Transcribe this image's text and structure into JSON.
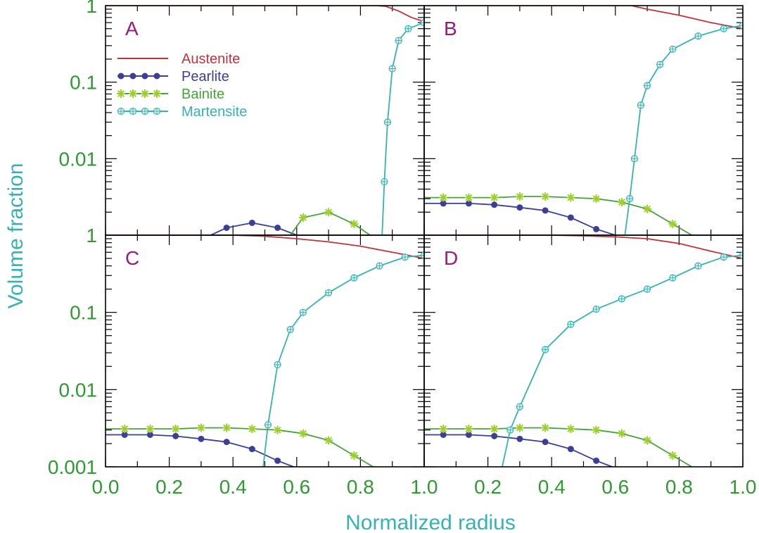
{
  "chart_data": {
    "type": "line",
    "xlabel": "Normalized radius",
    "ylabel": "Volume fraction",
    "x_ticks": [
      "0.0",
      "0.2",
      "0.4",
      "0.6",
      "0.8",
      "1.0",
      "0.2",
      "0.4",
      "0.6",
      "0.8",
      "1.0"
    ],
    "y_tick_labels": {
      "top_row": [
        "1",
        "0.1",
        "0.01"
      ],
      "bottom_row": [
        "1",
        "0.1",
        "0.01",
        "0.001"
      ]
    },
    "yscale": "log",
    "ylim": [
      0.001,
      1
    ],
    "xlim": [
      0,
      1
    ],
    "legend": {
      "placement": "top-left (panel A)",
      "entries": [
        {
          "name": "Austenite",
          "marker": "none",
          "color": "#c0333b"
        },
        {
          "name": "Pearlite",
          "marker": "filled-circle",
          "color": "#3b3f98"
        },
        {
          "name": "Bainite",
          "marker": "asterisk",
          "color": "#45a33a"
        },
        {
          "name": "Martensite",
          "marker": "circle-plus",
          "color": "#35b3b3"
        }
      ]
    },
    "panels": [
      {
        "label": "A",
        "series": [
          {
            "name": "Austenite",
            "x": [
              0,
              0.3,
              0.5,
              0.6,
              0.8,
              0.85,
              0.88,
              0.92,
              0.96,
              1.0
            ],
            "y": [
              1,
              1,
              1,
              1,
              1,
              1,
              0.98,
              0.85,
              0.7,
              0.62
            ]
          },
          {
            "name": "Pearlite",
            "x": [
              0.33,
              0.38,
              0.46,
              0.54,
              0.6
            ],
            "y": [
              0.001,
              0.00125,
              0.00145,
              0.00125,
              0.001
            ]
          },
          {
            "name": "Bainite",
            "x": [
              0.58,
              0.62,
              0.7,
              0.78,
              0.83
            ],
            "y": [
              0.001,
              0.0017,
              0.002,
              0.0014,
              0.001
            ]
          },
          {
            "name": "Martensite",
            "x": [
              0.868,
              0.875,
              0.885,
              0.9,
              0.92,
              0.95,
              1.0
            ],
            "y": [
              0.001,
              0.005,
              0.03,
              0.15,
              0.35,
              0.5,
              0.6
            ]
          }
        ]
      },
      {
        "label": "B",
        "series": [
          {
            "name": "Austenite",
            "x": [
              0,
              0.4,
              0.6,
              0.65,
              0.7,
              0.8,
              0.9,
              1.0
            ],
            "y": [
              1,
              1,
              1,
              1,
              0.9,
              0.75,
              0.6,
              0.5
            ]
          },
          {
            "name": "Pearlite",
            "x": [
              0.0,
              0.06,
              0.14,
              0.22,
              0.3,
              0.38,
              0.46,
              0.54,
              0.6
            ],
            "y": [
              0.0026,
              0.0026,
              0.0026,
              0.0025,
              0.0023,
              0.0021,
              0.0017,
              0.0012,
              0.001
            ]
          },
          {
            "name": "Bainite",
            "x": [
              0.0,
              0.06,
              0.14,
              0.22,
              0.3,
              0.38,
              0.46,
              0.54,
              0.62,
              0.7,
              0.78,
              0.84
            ],
            "y": [
              0.0031,
              0.0031,
              0.0031,
              0.0031,
              0.0032,
              0.0032,
              0.0031,
              0.003,
              0.0027,
              0.0022,
              0.0014,
              0.001
            ]
          },
          {
            "name": "Martensite",
            "x": [
              0.63,
              0.645,
              0.66,
              0.68,
              0.7,
              0.74,
              0.78,
              0.86,
              0.94,
              1.0
            ],
            "y": [
              0.001,
              0.003,
              0.01,
              0.05,
              0.09,
              0.17,
              0.27,
              0.4,
              0.5,
              0.55
            ]
          }
        ]
      },
      {
        "label": "C",
        "series": [
          {
            "name": "Austenite",
            "x": [
              0,
              0.3,
              0.4,
              0.5,
              0.6,
              0.7,
              0.8,
              0.9,
              1.0
            ],
            "y": [
              1,
              1,
              1,
              0.97,
              0.9,
              0.82,
              0.72,
              0.6,
              0.5
            ]
          },
          {
            "name": "Pearlite",
            "x": [
              0.0,
              0.06,
              0.14,
              0.22,
              0.3,
              0.38,
              0.46,
              0.54,
              0.59
            ],
            "y": [
              0.0026,
              0.0026,
              0.0026,
              0.0025,
              0.0023,
              0.0021,
              0.0017,
              0.0012,
              0.001
            ]
          },
          {
            "name": "Bainite",
            "x": [
              0.0,
              0.06,
              0.14,
              0.22,
              0.3,
              0.38,
              0.46,
              0.54,
              0.62,
              0.7,
              0.78,
              0.84
            ],
            "y": [
              0.0031,
              0.0031,
              0.0031,
              0.0031,
              0.0032,
              0.0032,
              0.0031,
              0.003,
              0.0027,
              0.0022,
              0.0014,
              0.001
            ]
          },
          {
            "name": "Martensite",
            "x": [
              0.495,
              0.51,
              0.54,
              0.58,
              0.62,
              0.7,
              0.78,
              0.86,
              0.94,
              1.0
            ],
            "y": [
              0.001,
              0.0035,
              0.021,
              0.06,
              0.1,
              0.18,
              0.28,
              0.4,
              0.52,
              0.55
            ]
          }
        ]
      },
      {
        "label": "D",
        "series": [
          {
            "name": "Austenite",
            "x": [
              0,
              0.4,
              0.5,
              0.6,
              0.7,
              0.8,
              0.9,
              1.0
            ],
            "y": [
              1,
              1,
              0.98,
              0.95,
              0.9,
              0.78,
              0.62,
              0.5
            ]
          },
          {
            "name": "Pearlite",
            "x": [
              0.0,
              0.06,
              0.14,
              0.22,
              0.3,
              0.38,
              0.46,
              0.54,
              0.59
            ],
            "y": [
              0.0026,
              0.0026,
              0.0026,
              0.0025,
              0.0023,
              0.0021,
              0.0017,
              0.0012,
              0.001
            ]
          },
          {
            "name": "Bainite",
            "x": [
              0.0,
              0.06,
              0.14,
              0.22,
              0.3,
              0.38,
              0.46,
              0.54,
              0.62,
              0.7,
              0.78,
              0.84
            ],
            "y": [
              0.0031,
              0.0031,
              0.0031,
              0.0031,
              0.0032,
              0.0032,
              0.0031,
              0.003,
              0.0027,
              0.0022,
              0.0014,
              0.001
            ]
          },
          {
            "name": "Martensite",
            "x": [
              0.245,
              0.27,
              0.3,
              0.38,
              0.46,
              0.54,
              0.62,
              0.7,
              0.78,
              0.86,
              0.94,
              1.0
            ],
            "y": [
              0.001,
              0.003,
              0.006,
              0.033,
              0.07,
              0.11,
              0.15,
              0.2,
              0.28,
              0.4,
              0.52,
              0.55
            ]
          }
        ]
      }
    ]
  },
  "colors": {
    "Austenite": "#c0333b",
    "Pearlite": "#3b3f98",
    "Bainite": "#45a33a",
    "Bainite_marker": "#9ccf2c",
    "Martensite": "#35b3b3",
    "Martensite_marker_fill": "#dff4f4"
  }
}
